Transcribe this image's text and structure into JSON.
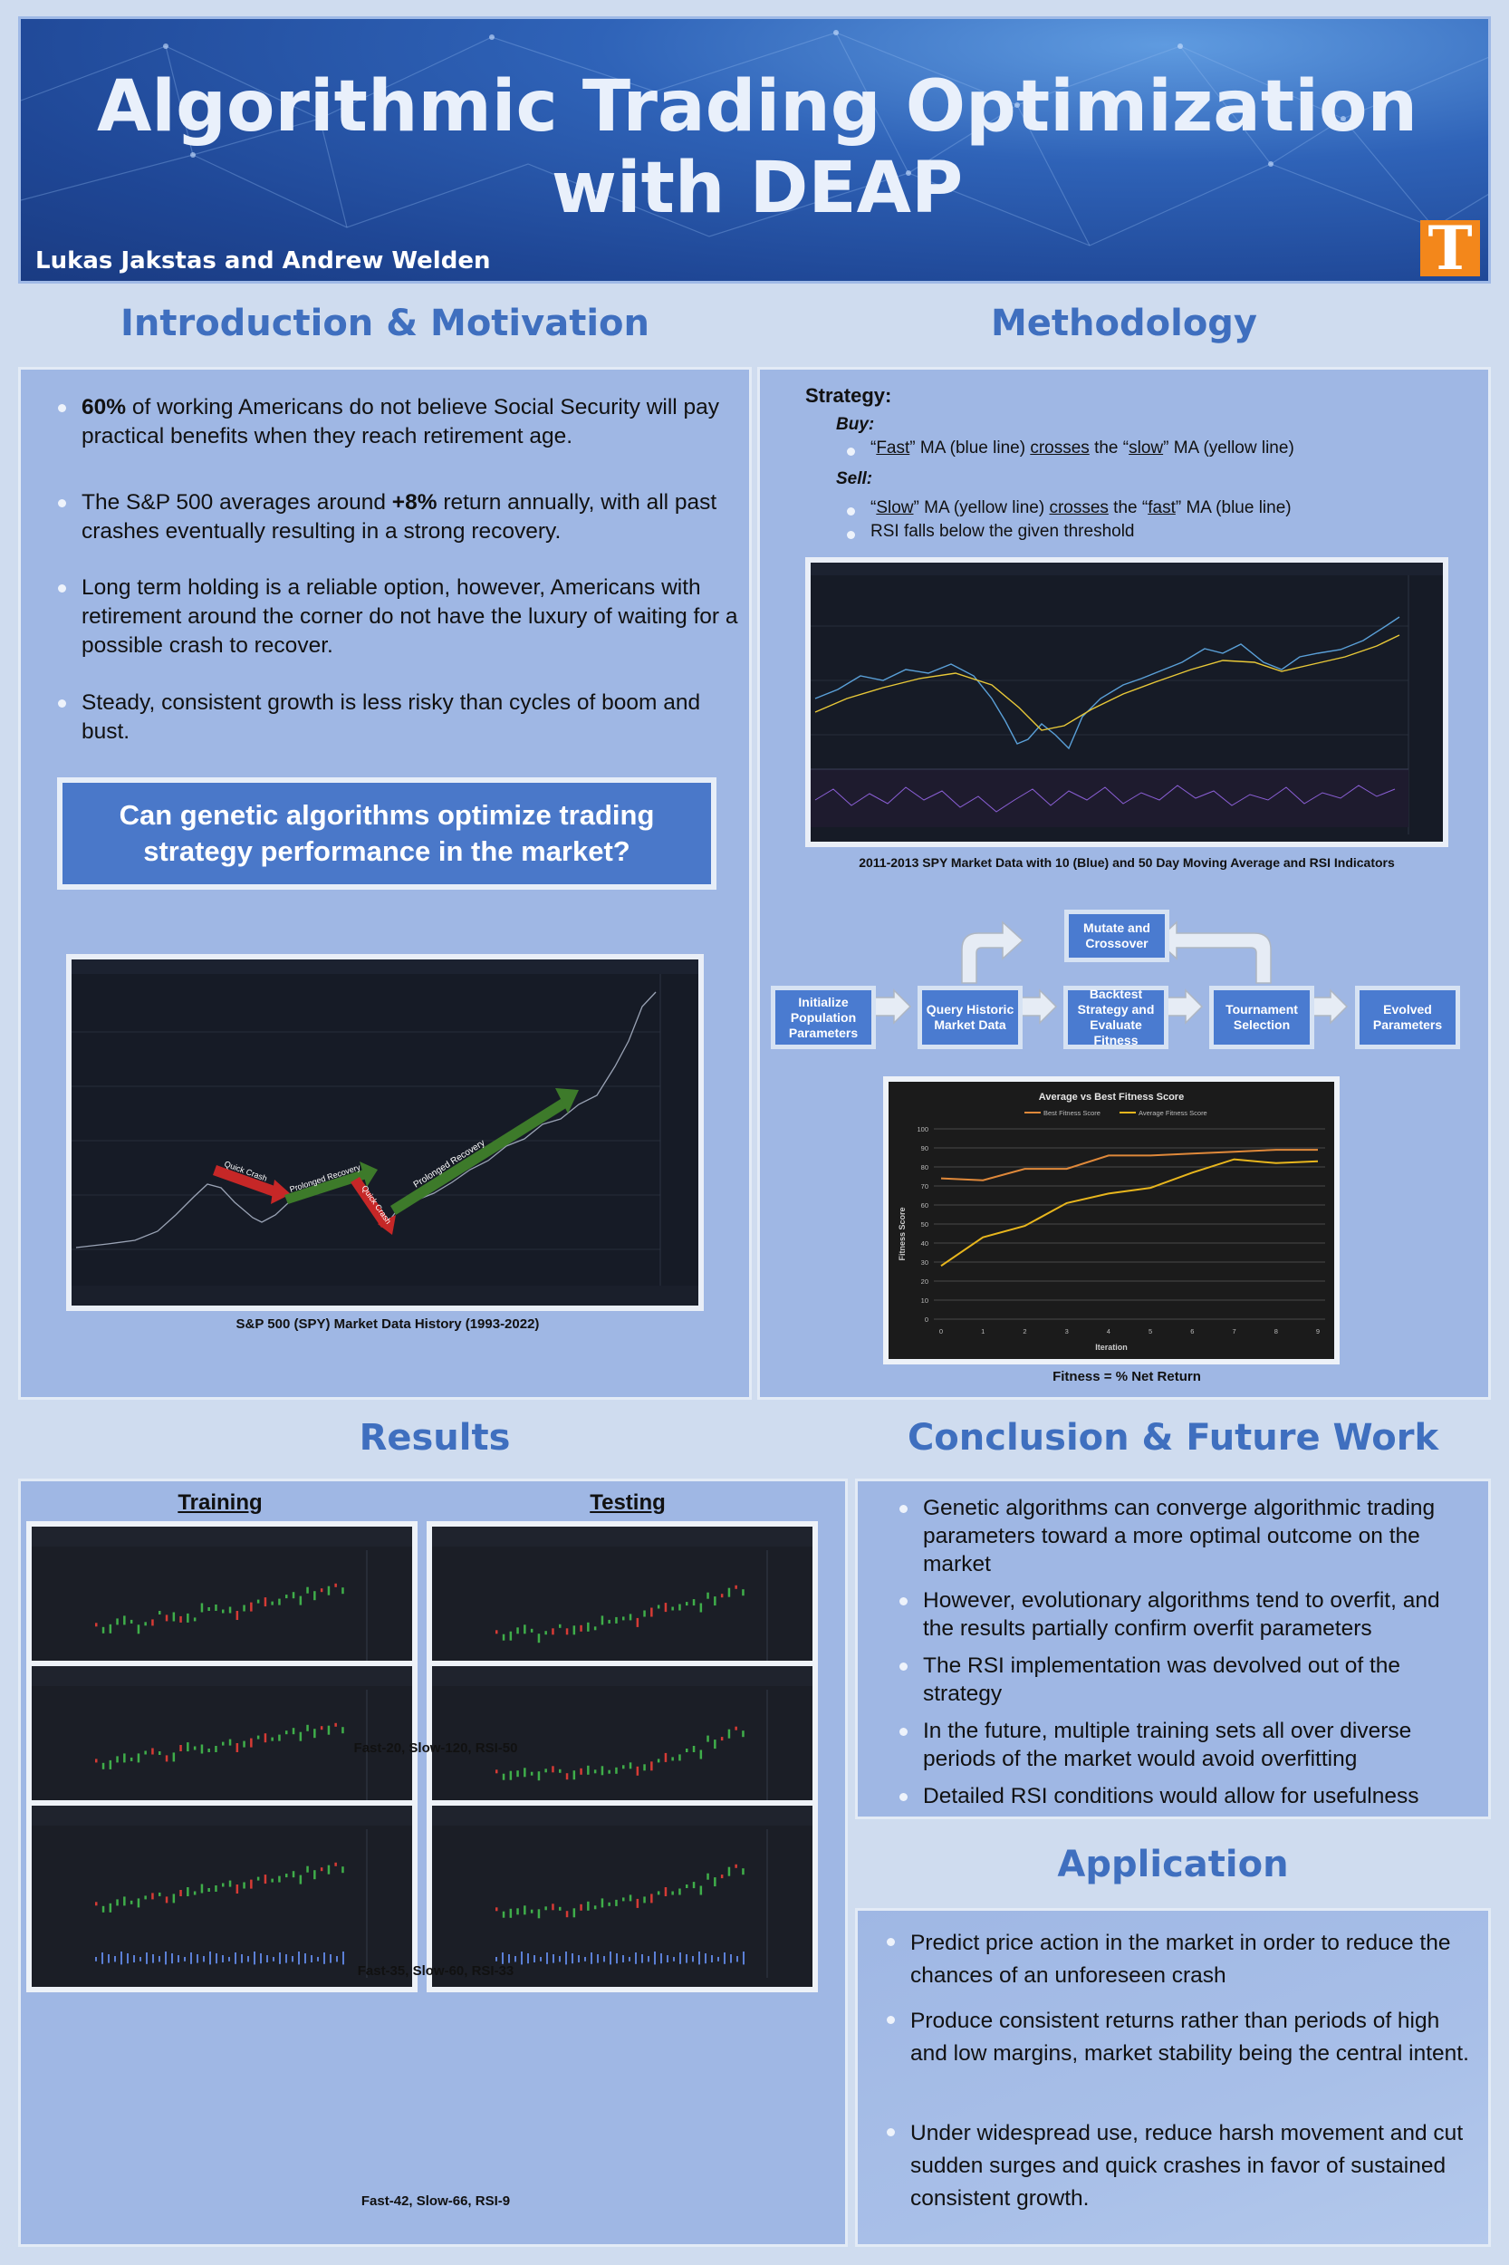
{
  "header": {
    "title_line1": "Algorithmic Trading Optimization",
    "title_line2": "with DEAP",
    "authors": "Lukas Jakstas and Andrew Welden",
    "logo_letter": "T",
    "logo_color": "#f3871b"
  },
  "intro": {
    "heading": "Introduction & Motivation",
    "bullets": [
      {
        "bold": "60%",
        "text": " of working Americans do not believe Social Security will pay practical benefits when they reach retirement age."
      },
      {
        "pre": "The S&P 500 averages around ",
        "bold": "+8%",
        "text": " return annually, with all past crashes eventually resulting in a strong recovery."
      },
      {
        "text": "Long term holding is a reliable option, however, Americans with retirement around the corner do not have the luxury of waiting for a possible crash to recover."
      },
      {
        "text": "Steady, consistent growth is less risky than cycles of boom and bust."
      }
    ],
    "question": "Can genetic algorithms optimize trading strategy performance in the market?",
    "chart_caption": "S&P 500 (SPY) Market Data History (1993-2022)",
    "arrow_labels": [
      "Quick Crash",
      "Prolonged Recovery",
      "Quick Crash",
      "Prolonged Recovery"
    ]
  },
  "method": {
    "heading": "Methodology",
    "strategy_label": "Strategy:",
    "buy_label": "Buy:",
    "buy_rule": {
      "q1": "“",
      "fast": "Fast",
      "mid1": "” MA (blue line) ",
      "crosses": "crosses",
      "mid2": " the “",
      "slow": "slow",
      "end": "” MA (yellow line)"
    },
    "sell_label": "Sell:",
    "sell_rule": {
      "q1": "“",
      "slow": "Slow",
      "mid1": "” MA (yellow line) ",
      "crosses": "crosses",
      "mid2": " the “",
      "fast": "fast",
      "end": "” MA (blue line)"
    },
    "sell_rule2": "RSI falls below the given threshold",
    "market_caption": "2011-2013 SPY Market Data with 10 (Blue) and 50 Day Moving Average and RSI Indicators",
    "flowchart": {
      "init": "Initialize Population Parameters",
      "query": "Query Historic Market Data",
      "backtest": "Backtest Strategy and Evaluate Fitness",
      "tournament": "Tournament Selection",
      "evolved": "Evolved Parameters",
      "mutate": "Mutate and Crossover"
    },
    "fitness_caption": "Fitness = % Net Return"
  },
  "chart_data": {
    "type": "line",
    "title": "Average vs Best Fitness Score",
    "xlabel": "Iteration",
    "ylabel": "Fitness Score",
    "x": [
      0,
      1,
      2,
      3,
      4,
      5,
      6,
      7,
      8,
      9
    ],
    "ylim": [
      0,
      100
    ],
    "yticks": [
      0,
      10,
      20,
      30,
      40,
      50,
      60,
      70,
      80,
      90,
      100
    ],
    "grid": true,
    "legend_position": "top",
    "series": [
      {
        "name": "Best Fitness Score",
        "color": "#e0893a",
        "values": [
          74,
          73,
          79,
          79,
          86,
          86,
          87,
          88,
          89,
          89
        ]
      },
      {
        "name": "Average Fitness Score",
        "color": "#e8b61d",
        "values": [
          28,
          43,
          49,
          61,
          66,
          69,
          77,
          84,
          82,
          83
        ]
      }
    ]
  },
  "results": {
    "heading": "Results",
    "training_label": "Training",
    "testing_label": "Testing",
    "captions": [
      "Fast-20, Slow-120, RSI-50",
      "Fast-35, Slow-60, RSI-33",
      "Fast-42, Slow-66, RSI-9"
    ]
  },
  "conclusion": {
    "heading": "Conclusion & Future Work",
    "bullets": [
      "Genetic algorithms can converge algorithmic trading parameters toward a more optimal outcome on the market",
      "However, evolutionary algorithms tend to overfit, and the results partially confirm overfit parameters",
      "The RSI implementation was devolved out of the strategy",
      "In the future, multiple training sets all over diverse periods of the market would avoid overfitting",
      "Detailed RSI conditions would allow for usefulness"
    ]
  },
  "application": {
    "heading": "Application",
    "bullets": [
      "Predict price action in the market in order to reduce the chances of an unforeseen crash",
      "Produce consistent returns rather than periods of high and low margins, market stability being the central intent.",
      "Under widespread use, reduce harsh movement and cut sudden surges and quick crashes in favor of sustained consistent growth."
    ]
  }
}
